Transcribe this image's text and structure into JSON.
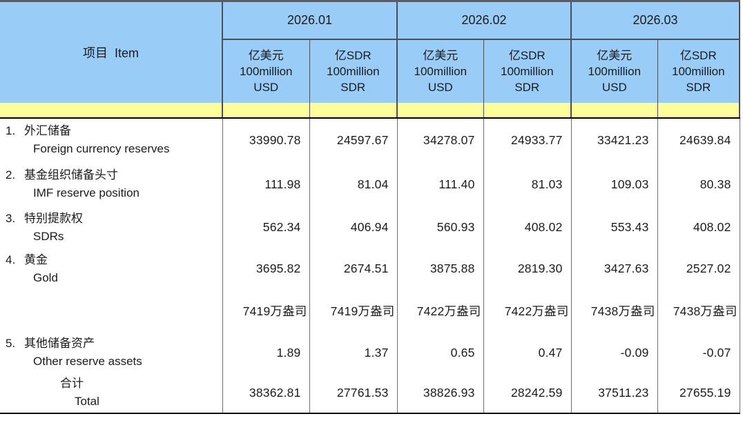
{
  "table": {
    "title_cell": "项目  Item",
    "months": [
      "2026.01",
      "2026.02",
      "2026.03"
    ],
    "unit_usd": {
      "l1": "亿美元",
      "l2": "100million",
      "l3": "USD"
    },
    "unit_sdr": {
      "l1": "亿SDR",
      "l2": "100million",
      "l3": "SDR"
    },
    "rows": [
      {
        "type": "normal",
        "num": "1.",
        "zh": "外汇储备",
        "en": "Foreign currency reserves",
        "values": [
          "33990.78",
          "24597.67",
          "34278.07",
          "24933.77",
          "33421.23",
          "24639.84"
        ]
      },
      {
        "type": "normal",
        "num": "2.",
        "zh": "基金组织储备头寸",
        "en": "IMF reserve position",
        "values": [
          "111.98",
          "81.04",
          "111.40",
          "81.03",
          "109.03",
          "80.38"
        ]
      },
      {
        "type": "normal",
        "num": "3.",
        "zh": "特别提款权",
        "en": "SDRs",
        "values": [
          "562.34",
          "406.94",
          "560.93",
          "408.02",
          "553.43",
          "408.02"
        ]
      },
      {
        "type": "normal",
        "num": "4.",
        "zh": "黄金",
        "en": "Gold",
        "values": [
          "3695.82",
          "2674.51",
          "3875.88",
          "2819.30",
          "3427.63",
          "2527.02"
        ]
      },
      {
        "type": "ounces",
        "num": "",
        "zh": "",
        "en": "",
        "values": [
          "7419万盎司",
          "7419万盎司",
          "7422万盎司",
          "7422万盎司",
          "7438万盎司",
          "7438万盎司"
        ]
      },
      {
        "type": "normal",
        "num": "5.",
        "zh": "其他储备资产",
        "en": "Other reserve assets",
        "values": [
          "1.89",
          "1.37",
          "0.65",
          "0.47",
          "-0.09",
          "-0.07"
        ]
      },
      {
        "type": "total",
        "num": "",
        "zh": "合计",
        "en": "Total",
        "values": [
          "38362.81",
          "27761.53",
          "38826.93",
          "28242.59",
          "37511.23",
          "27655.19"
        ]
      }
    ],
    "colors": {
      "header_blue": "#9ACCF8",
      "band_yellow": "#FDFD9C",
      "border_dark": "#474F5A",
      "border_gray": "#6F6F6F",
      "border_black": "#000000"
    }
  }
}
